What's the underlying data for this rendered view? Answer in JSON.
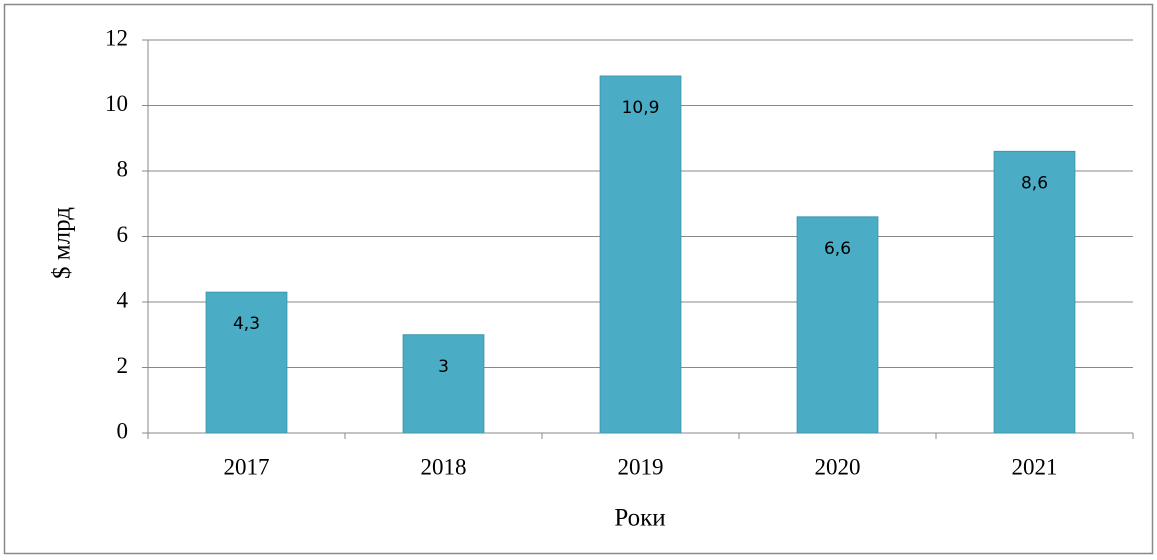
{
  "chart_data": {
    "type": "bar",
    "categories": [
      "2017",
      "2018",
      "2019",
      "2020",
      "2021"
    ],
    "values": [
      4.3,
      3,
      10.9,
      6.6,
      8.6
    ],
    "value_labels": [
      "4,3",
      "3",
      "10,9",
      "6,6",
      "8,6"
    ],
    "color": "#4bacc6",
    "ylim": [
      0,
      12
    ],
    "yticks": [
      0,
      2,
      4,
      6,
      8,
      10,
      12
    ],
    "grid": true,
    "y_label": "$ млрд",
    "x_label": "Роки"
  }
}
